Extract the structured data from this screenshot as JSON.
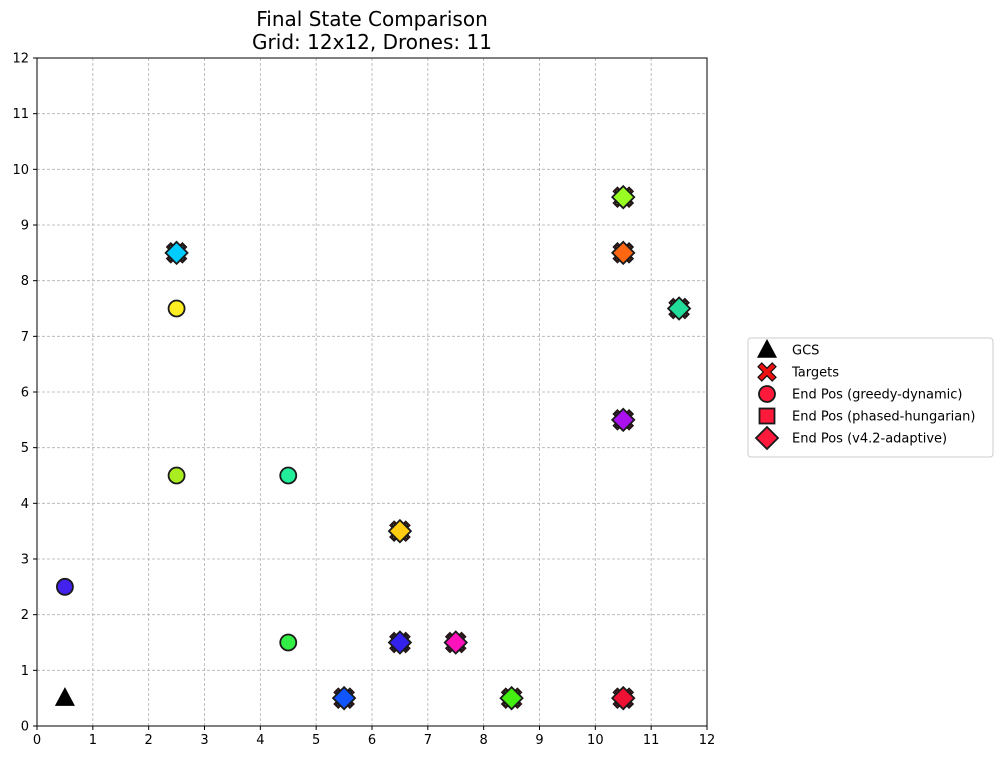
{
  "chart_data": {
    "type": "scatter",
    "title_line1": "Final State Comparison",
    "title_line2": "Grid: 12x12, Drones: 11",
    "xlabel": "",
    "ylabel": "",
    "xlim": [
      0,
      12
    ],
    "ylim": [
      0,
      12
    ],
    "x_ticks": [
      "0",
      "1",
      "2",
      "3",
      "4",
      "5",
      "6",
      "7",
      "8",
      "9",
      "10",
      "11",
      "12"
    ],
    "y_ticks": [
      "0",
      "1",
      "2",
      "3",
      "4",
      "5",
      "6",
      "7",
      "8",
      "9",
      "10",
      "11",
      "12"
    ],
    "grid": true,
    "legend_position": "right-center",
    "legend": [
      {
        "label": "GCS",
        "marker": "triangle",
        "color": "#000000"
      },
      {
        "label": "Targets",
        "marker": "x",
        "color": "#ee1111"
      },
      {
        "label": "End Pos (greedy-dynamic)",
        "marker": "circle",
        "color": "#ff1a3c"
      },
      {
        "label": "End Pos (phased-hungarian)",
        "marker": "square",
        "color": "#ff1a3c"
      },
      {
        "label": "End Pos (v4.2-adaptive)",
        "marker": "diamond",
        "color": "#ff1a3c"
      }
    ],
    "gcs": {
      "x": 0.5,
      "y": 0.5
    },
    "targets": [
      {
        "x": 2.5,
        "y": 8.5
      },
      {
        "x": 10.5,
        "y": 9.5
      },
      {
        "x": 10.5,
        "y": 8.5
      },
      {
        "x": 11.5,
        "y": 7.5
      },
      {
        "x": 10.5,
        "y": 5.5
      },
      {
        "x": 6.5,
        "y": 3.5
      },
      {
        "x": 6.5,
        "y": 1.5
      },
      {
        "x": 7.5,
        "y": 1.5
      },
      {
        "x": 5.5,
        "y": 0.5
      },
      {
        "x": 8.5,
        "y": 0.5
      },
      {
        "x": 10.5,
        "y": 0.5
      }
    ],
    "end_greedy_dynamic": [
      {
        "x": 2.5,
        "y": 8.5,
        "color": "#00ccff"
      },
      {
        "x": 2.5,
        "y": 7.5,
        "color": "#ffee22"
      },
      {
        "x": 2.5,
        "y": 4.5,
        "color": "#aaee22"
      },
      {
        "x": 4.5,
        "y": 4.5,
        "color": "#22ee99"
      },
      {
        "x": 0.5,
        "y": 2.5,
        "color": "#4422ee"
      },
      {
        "x": 4.5,
        "y": 1.5,
        "color": "#33ee44"
      },
      {
        "x": 10.5,
        "y": 9.5,
        "color": "#99ff22"
      },
      {
        "x": 10.5,
        "y": 8.5,
        "color": "#ff6611"
      },
      {
        "x": 11.5,
        "y": 7.5,
        "color": "#22dd99"
      },
      {
        "x": 10.5,
        "y": 5.5,
        "color": "#aa11ee"
      },
      {
        "x": 6.5,
        "y": 3.5,
        "color": "#ffcc11"
      }
    ],
    "end_phased_hungarian": [
      {
        "x": 2.5,
        "y": 8.5,
        "color": "#00ccff"
      },
      {
        "x": 10.5,
        "y": 9.5,
        "color": "#99ff22"
      },
      {
        "x": 10.5,
        "y": 8.5,
        "color": "#ff6611"
      },
      {
        "x": 11.5,
        "y": 7.5,
        "color": "#22dd99"
      },
      {
        "x": 10.5,
        "y": 5.5,
        "color": "#aa11ee"
      },
      {
        "x": 6.5,
        "y": 3.5,
        "color": "#ffcc11"
      },
      {
        "x": 6.5,
        "y": 1.5,
        "color": "#3322ee"
      },
      {
        "x": 7.5,
        "y": 1.5,
        "color": "#ff11bb"
      },
      {
        "x": 5.5,
        "y": 0.5,
        "color": "#1155ff"
      },
      {
        "x": 8.5,
        "y": 0.5,
        "color": "#44ee11"
      },
      {
        "x": 10.5,
        "y": 0.5,
        "color": "#ee1133"
      }
    ],
    "end_v42_adaptive": [
      {
        "x": 2.5,
        "y": 8.5,
        "color": "#00ccff"
      },
      {
        "x": 10.5,
        "y": 9.5,
        "color": "#99ff22"
      },
      {
        "x": 10.5,
        "y": 8.5,
        "color": "#ff6611"
      },
      {
        "x": 11.5,
        "y": 7.5,
        "color": "#22dd99"
      },
      {
        "x": 10.5,
        "y": 5.5,
        "color": "#aa11ee"
      },
      {
        "x": 6.5,
        "y": 3.5,
        "color": "#ffcc11"
      },
      {
        "x": 6.5,
        "y": 1.5,
        "color": "#3322ee"
      },
      {
        "x": 7.5,
        "y": 1.5,
        "color": "#ff11bb"
      },
      {
        "x": 5.5,
        "y": 0.5,
        "color": "#1155ff"
      },
      {
        "x": 8.5,
        "y": 0.5,
        "color": "#44ee11"
      },
      {
        "x": 10.5,
        "y": 0.5,
        "color": "#ee1133"
      }
    ]
  }
}
